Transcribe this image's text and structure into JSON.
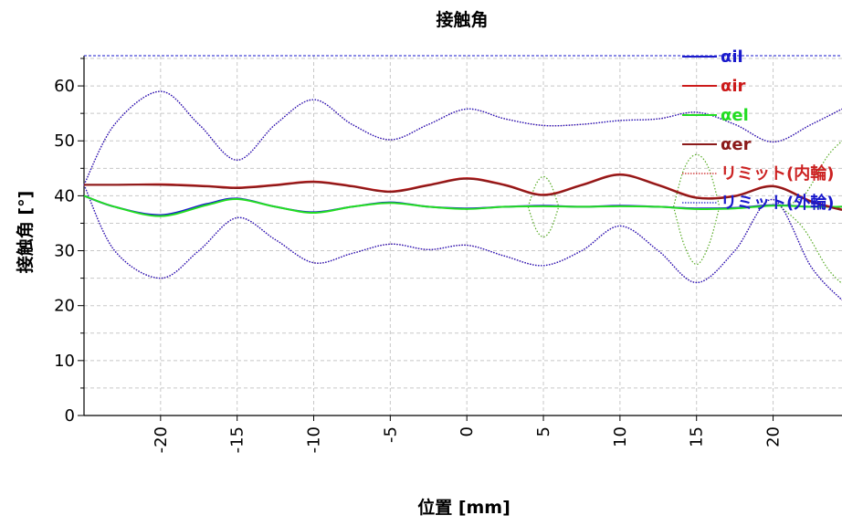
{
  "chart_data": {
    "type": "line",
    "title": "接触角",
    "xlabel": "位置 [mm]",
    "ylabel": "接触角 [°]",
    "xlim": [
      -25,
      24.5
    ],
    "ylim": [
      0,
      65.5
    ],
    "xticks": [
      -20,
      -15,
      -10,
      -5,
      0,
      5,
      10,
      15,
      20
    ],
    "xtick_labels": [
      "-20",
      "-15",
      "-10",
      "-5",
      "0",
      "5",
      "10",
      "15",
      "20"
    ],
    "yticks": [
      0,
      10,
      20,
      30,
      40,
      50,
      60
    ],
    "ytick_labels": [
      "0",
      "10",
      "20",
      "30",
      "40",
      "50",
      "60"
    ],
    "grid": true,
    "legend_position": "top-right",
    "top_reference_line": 65.5,
    "series": [
      {
        "name": "αil",
        "color": "#1a1acc",
        "style": "solid",
        "x": [
          -25,
          -23,
          -20,
          -17,
          -15,
          -12.5,
          -10,
          -7.5,
          -5,
          -2.5,
          0,
          2.5,
          5,
          7.5,
          10,
          12.5,
          15,
          17.5,
          20,
          22.5,
          24.5
        ],
        "y": [
          40,
          38,
          36.5,
          38.5,
          39.5,
          38,
          37,
          38,
          38.8,
          38,
          37.7,
          38,
          38.2,
          38,
          38.2,
          38,
          37.7,
          37.8,
          38.3,
          38,
          38
        ]
      },
      {
        "name": "αir",
        "color": "#cc1a1a",
        "style": "solid",
        "x": [
          -25,
          -23,
          -20,
          -17,
          -15,
          -12.5,
          -10,
          -7.5,
          -5,
          -2.5,
          0,
          2.5,
          5,
          7.5,
          10,
          12.5,
          15,
          17.5,
          20,
          22.5,
          24.5
        ],
        "y": [
          42,
          42,
          42.1,
          41.8,
          41.5,
          42,
          42.6,
          41.8,
          40.8,
          42,
          43.2,
          42,
          40.2,
          42,
          43.9,
          42,
          39.7,
          40,
          41.8,
          39,
          37.5
        ]
      },
      {
        "name": "αel",
        "color": "#22dd22",
        "style": "solid",
        "x": [
          -25,
          -23,
          -20,
          -17,
          -15,
          -12.5,
          -10,
          -7.5,
          -5,
          -2.5,
          0,
          2.5,
          5,
          7.5,
          10,
          12.5,
          15,
          17.5,
          20,
          22.5,
          24.5
        ],
        "y": [
          40,
          38,
          36.3,
          38.3,
          39.4,
          38,
          36.9,
          38,
          38.7,
          38,
          37.6,
          38,
          38.1,
          38,
          38.1,
          38,
          37.6,
          37.7,
          38.2,
          38,
          38
        ]
      },
      {
        "name": "αer",
        "color": "#8b1a1a",
        "style": "solid",
        "x": [
          -25,
          -23,
          -20,
          -17,
          -15,
          -12.5,
          -10,
          -7.5,
          -5,
          -2.5,
          0,
          2.5,
          5,
          7.5,
          10,
          12.5,
          15,
          17.5,
          20,
          22.5,
          24.5
        ],
        "y": [
          42,
          42,
          42,
          41.7,
          41.4,
          41.9,
          42.5,
          41.7,
          40.7,
          41.9,
          43.1,
          41.9,
          40.1,
          41.9,
          43.8,
          41.9,
          39.6,
          39.9,
          41.7,
          38.9,
          37.4
        ]
      },
      {
        "name": "リミット(内輪)",
        "color": "#cc2222",
        "style": "dotted",
        "x": [
          -25,
          -23,
          -20,
          -17.5,
          -15,
          -12.5,
          -10,
          -7.5,
          -5,
          -2.5,
          0,
          2.5,
          5,
          7.5,
          10,
          12.5,
          15,
          17.5,
          20,
          22.5,
          24.5
        ],
        "y": [
          42,
          53,
          59,
          53,
          46.5,
          53,
          57.5,
          53,
          50.2,
          53,
          55.8,
          54,
          52.8,
          53,
          53.7,
          54,
          55.2,
          53,
          49.8,
          53,
          55.8
        ],
        "y_lower": [
          42,
          30,
          25,
          30,
          36,
          32,
          27.8,
          29.5,
          31.2,
          30.2,
          31,
          29,
          27.3,
          30,
          34.5,
          30,
          24.2,
          30,
          39.3,
          27,
          21
        ]
      },
      {
        "name": "リミット(外輪)",
        "color": "#1a1acc",
        "style": "dotted",
        "x": [
          -25,
          -23,
          -20,
          -17.5,
          -15,
          -12.5,
          -10,
          -7.5,
          -5,
          -2.5,
          0,
          2.5,
          5,
          7.5,
          10,
          12.5,
          15,
          17.5,
          20,
          22.5,
          24.5
        ],
        "y": [
          42,
          53,
          59,
          53,
          46.5,
          53,
          57.5,
          53,
          50.2,
          53,
          55.8,
          54,
          52.8,
          53,
          53.7,
          54,
          55.2,
          53,
          49.8,
          53,
          55.8
        ],
        "y_lower": [
          42,
          30,
          25,
          30,
          36,
          32,
          27.8,
          29.5,
          31.2,
          30.2,
          31,
          29,
          27.3,
          30,
          34.5,
          30,
          24.2,
          30,
          39.3,
          27,
          21
        ]
      }
    ],
    "auxiliary_green_dotted": {
      "color": "#55aa22",
      "segments": [
        {
          "x": [
            4,
            4.5,
            5,
            5.5,
            6
          ],
          "y_upper": [
            38,
            42,
            43.5,
            42,
            38
          ],
          "y_lower": [
            38,
            34,
            32.5,
            34,
            38
          ]
        },
        {
          "x": [
            13.5,
            14.2,
            15,
            15.8,
            16.5
          ],
          "y_upper": [
            38,
            45,
            47.5,
            45,
            38
          ],
          "y_lower": [
            38,
            31,
            27.5,
            31,
            38
          ]
        },
        {
          "x": [
            20.5,
            22,
            23.5,
            24.5
          ],
          "y_upper": [
            38,
            40,
            47,
            50
          ],
          "y_lower": [
            38,
            34,
            27,
            24
          ]
        }
      ]
    }
  }
}
